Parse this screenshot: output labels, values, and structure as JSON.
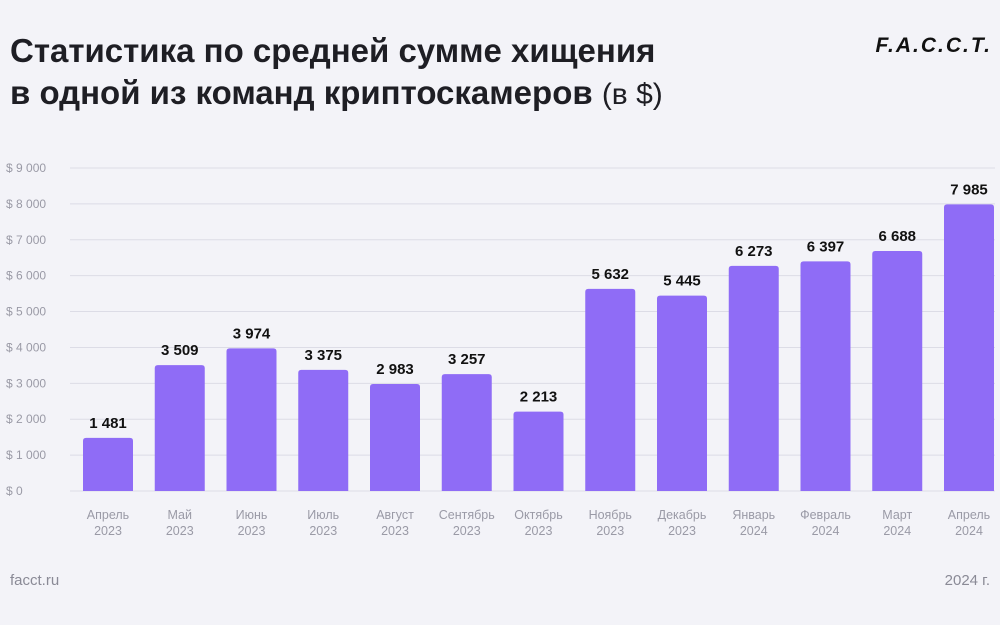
{
  "header": {
    "title_line1": "Статистика по средней сумме хищения",
    "title_line2": "в одной из команд криптоскамеров",
    "title_unit": "(в $)",
    "logo": "F.A.C.C.T."
  },
  "footer": {
    "source": "facct.ru",
    "year": "2024 г."
  },
  "colors": {
    "bar": "#8f6cf6",
    "grid": "#dcdce6",
    "axis_text": "#9a9aa6",
    "value_text": "#111111"
  },
  "chart_data": {
    "type": "bar",
    "title": "Статистика по средней сумме хищения в одной из команд криптоскамеров (в $)",
    "categories": [
      [
        "Апрель",
        "2023"
      ],
      [
        "Май",
        "2023"
      ],
      [
        "Июнь",
        "2023"
      ],
      [
        "Июль",
        "2023"
      ],
      [
        "Август",
        "2023"
      ],
      [
        "Сентябрь",
        "2023"
      ],
      [
        "Октябрь",
        "2023"
      ],
      [
        "Ноябрь",
        "2023"
      ],
      [
        "Декабрь",
        "2023"
      ],
      [
        "Январь",
        "2024"
      ],
      [
        "Февраль",
        "2024"
      ],
      [
        "Март",
        "2024"
      ],
      [
        "Апрель",
        "2024"
      ]
    ],
    "values": [
      1481,
      3509,
      3974,
      3375,
      2983,
      3257,
      2213,
      5632,
      5445,
      6273,
      6397,
      6688,
      7985
    ],
    "value_labels": [
      "1 481",
      "3 509",
      "3 974",
      "3 375",
      "2 983",
      "3 257",
      "2 213",
      "5 632",
      "5 445",
      "6 273",
      "6 397",
      "6 688",
      "7 985"
    ],
    "y_ticks": [
      0,
      1000,
      2000,
      3000,
      4000,
      5000,
      6000,
      7000,
      8000,
      9000
    ],
    "y_tick_labels": [
      "$ 0",
      "$ 1 000",
      "$ 2 000",
      "$ 3 000",
      "$ 4 000",
      "$ 5 000",
      "$ 6 000",
      "$ 7 000",
      "$ 8 000",
      "$ 9 000"
    ],
    "ylim": [
      0,
      9000
    ],
    "grid": true,
    "legend": "none"
  }
}
